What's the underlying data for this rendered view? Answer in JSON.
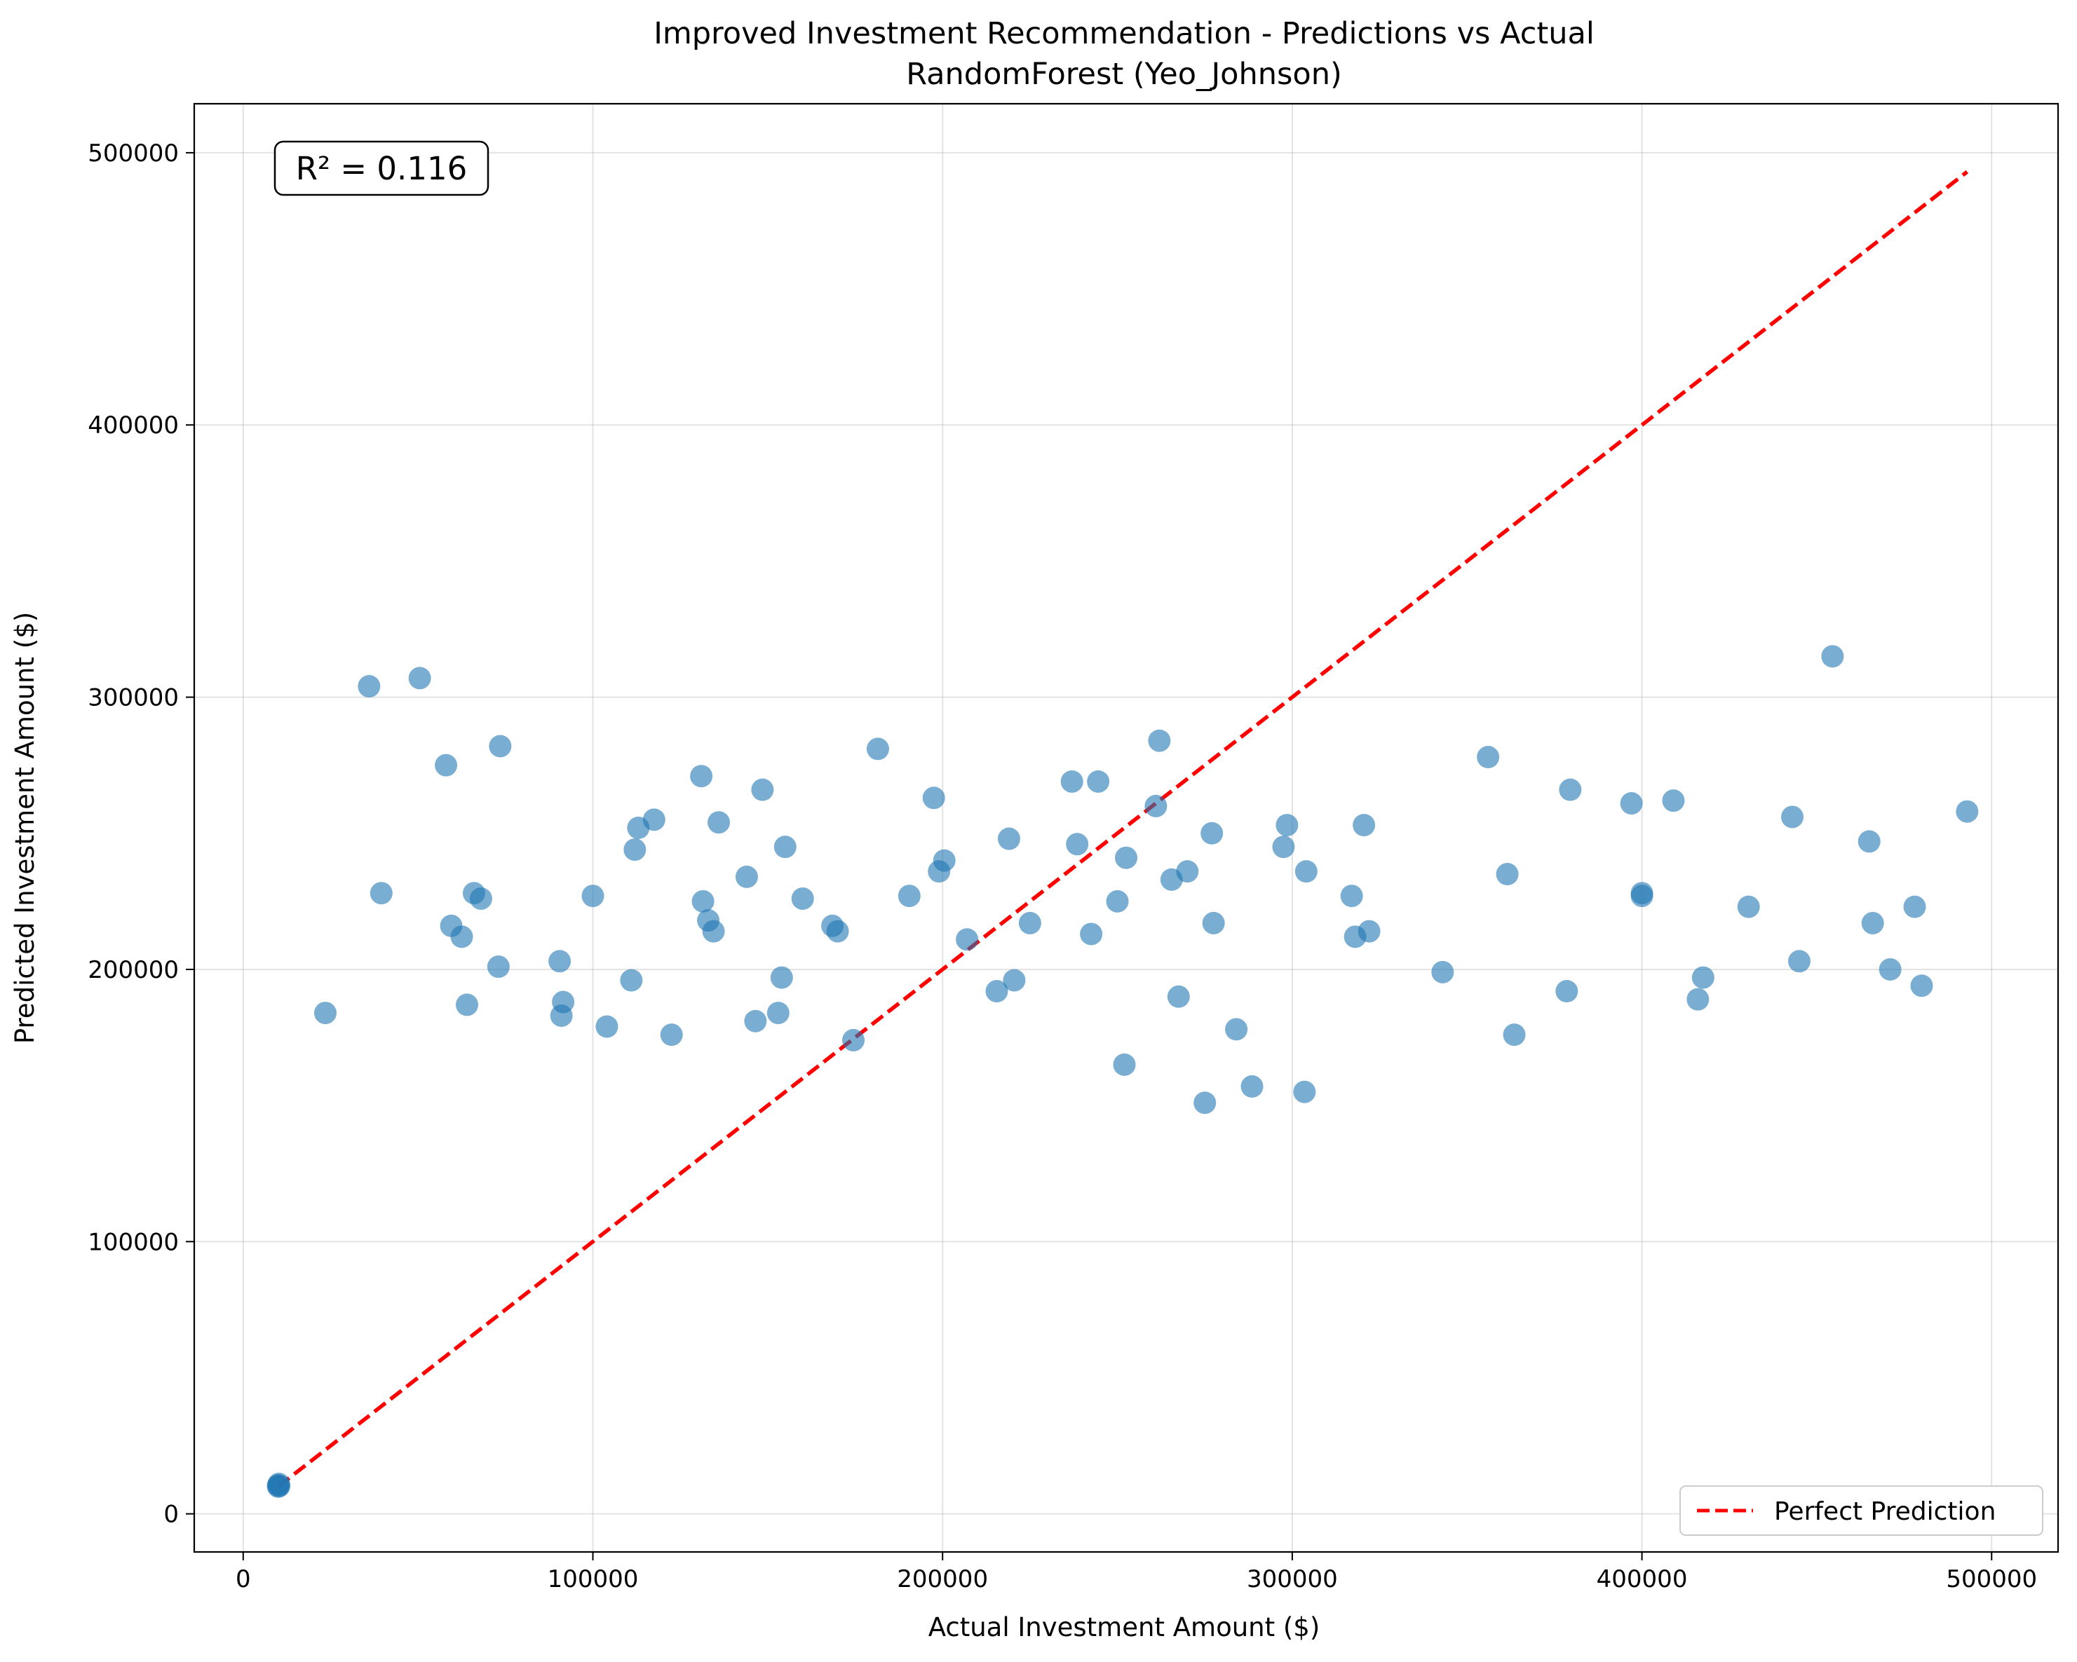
{
  "chart_data": {
    "type": "scatter",
    "title": "Improved Investment Recommendation - Predictions vs Actual",
    "subtitle": "RandomForest (Yeo_Johnson)",
    "xlabel": "Actual Investment Amount ($)",
    "ylabel": "Predicted Investment Amount ($)",
    "xlim": [
      -14000,
      519000
    ],
    "ylim": [
      -14000,
      518000
    ],
    "xticks": [
      "0",
      "100000",
      "200000",
      "300000",
      "400000",
      "500000"
    ],
    "yticks": [
      "0",
      "100000",
      "200000",
      "300000",
      "400000",
      "500000"
    ],
    "grid": true,
    "legend_position": "bottom-right",
    "annotation": "R² = 0.116",
    "colors": {
      "points": "#1f77b4",
      "perfect_line": "#ff0000"
    },
    "series": [
      {
        "points": [
          [
            10000,
            10000
          ],
          [
            10200,
            11000
          ],
          [
            10000,
            10500
          ],
          [
            10300,
            10200
          ],
          [
            23500,
            184000
          ],
          [
            36000,
            304000
          ],
          [
            39500,
            228000
          ],
          [
            50500,
            307000
          ],
          [
            58000,
            275000
          ],
          [
            59500,
            216000
          ],
          [
            62500,
            212000
          ],
          [
            64000,
            187000
          ],
          [
            66000,
            228000
          ],
          [
            68000,
            226000
          ],
          [
            73000,
            201000
          ],
          [
            73500,
            282000
          ],
          [
            90500,
            203000
          ],
          [
            91000,
            183000
          ],
          [
            91500,
            188000
          ],
          [
            100000,
            227000
          ],
          [
            104000,
            179000
          ],
          [
            111000,
            196000
          ],
          [
            112000,
            244000
          ],
          [
            113000,
            252000
          ],
          [
            117500,
            255000
          ],
          [
            122500,
            176000
          ],
          [
            131000,
            271000
          ],
          [
            131500,
            225000
          ],
          [
            133000,
            218000
          ],
          [
            134500,
            214000
          ],
          [
            136000,
            254000
          ],
          [
            144000,
            234000
          ],
          [
            146500,
            181000
          ],
          [
            148500,
            266000
          ],
          [
            153000,
            184000
          ],
          [
            154000,
            197000
          ],
          [
            155000,
            245000
          ],
          [
            160000,
            226000
          ],
          [
            168500,
            216000
          ],
          [
            170000,
            214000
          ],
          [
            174500,
            174000
          ],
          [
            181500,
            281000
          ],
          [
            190500,
            227000
          ],
          [
            197500,
            263000
          ],
          [
            199000,
            236000
          ],
          [
            200500,
            240000
          ],
          [
            207000,
            211000
          ],
          [
            215500,
            192000
          ],
          [
            219000,
            248000
          ],
          [
            220500,
            196000
          ],
          [
            225000,
            217000
          ],
          [
            237000,
            269000
          ],
          [
            238500,
            246000
          ],
          [
            242500,
            213000
          ],
          [
            244500,
            269000
          ],
          [
            250000,
            225000
          ],
          [
            252000,
            165000
          ],
          [
            252500,
            241000
          ],
          [
            261000,
            260000
          ],
          [
            262000,
            284000
          ],
          [
            265500,
            233000
          ],
          [
            267500,
            190000
          ],
          [
            270000,
            236000
          ],
          [
            275000,
            151000
          ],
          [
            277000,
            250000
          ],
          [
            277500,
            217000
          ],
          [
            284000,
            178000
          ],
          [
            288500,
            157000
          ],
          [
            297500,
            245000
          ],
          [
            298500,
            253000
          ],
          [
            303500,
            155000
          ],
          [
            304000,
            236000
          ],
          [
            317000,
            227000
          ],
          [
            318000,
            212000
          ],
          [
            320500,
            253000
          ],
          [
            322000,
            214000
          ],
          [
            343000,
            199000
          ],
          [
            356000,
            278000
          ],
          [
            361500,
            235000
          ],
          [
            363500,
            176000
          ],
          [
            378500,
            192000
          ],
          [
            379500,
            266000
          ],
          [
            397000,
            261000
          ],
          [
            400000,
            228000
          ],
          [
            400000,
            227000
          ],
          [
            409000,
            262000
          ],
          [
            416000,
            189000
          ],
          [
            417500,
            197000
          ],
          [
            430500,
            223000
          ],
          [
            443000,
            256000
          ],
          [
            445000,
            203000
          ],
          [
            454500,
            315000
          ],
          [
            465000,
            247000
          ],
          [
            466000,
            217000
          ],
          [
            471000,
            200000
          ],
          [
            478000,
            223000
          ],
          [
            480000,
            194000
          ],
          [
            493000,
            258000
          ]
        ]
      },
      {
        "name": "Perfect Prediction",
        "line": [
          [
            10000,
            10000
          ],
          [
            493000,
            493000
          ]
        ]
      }
    ]
  }
}
